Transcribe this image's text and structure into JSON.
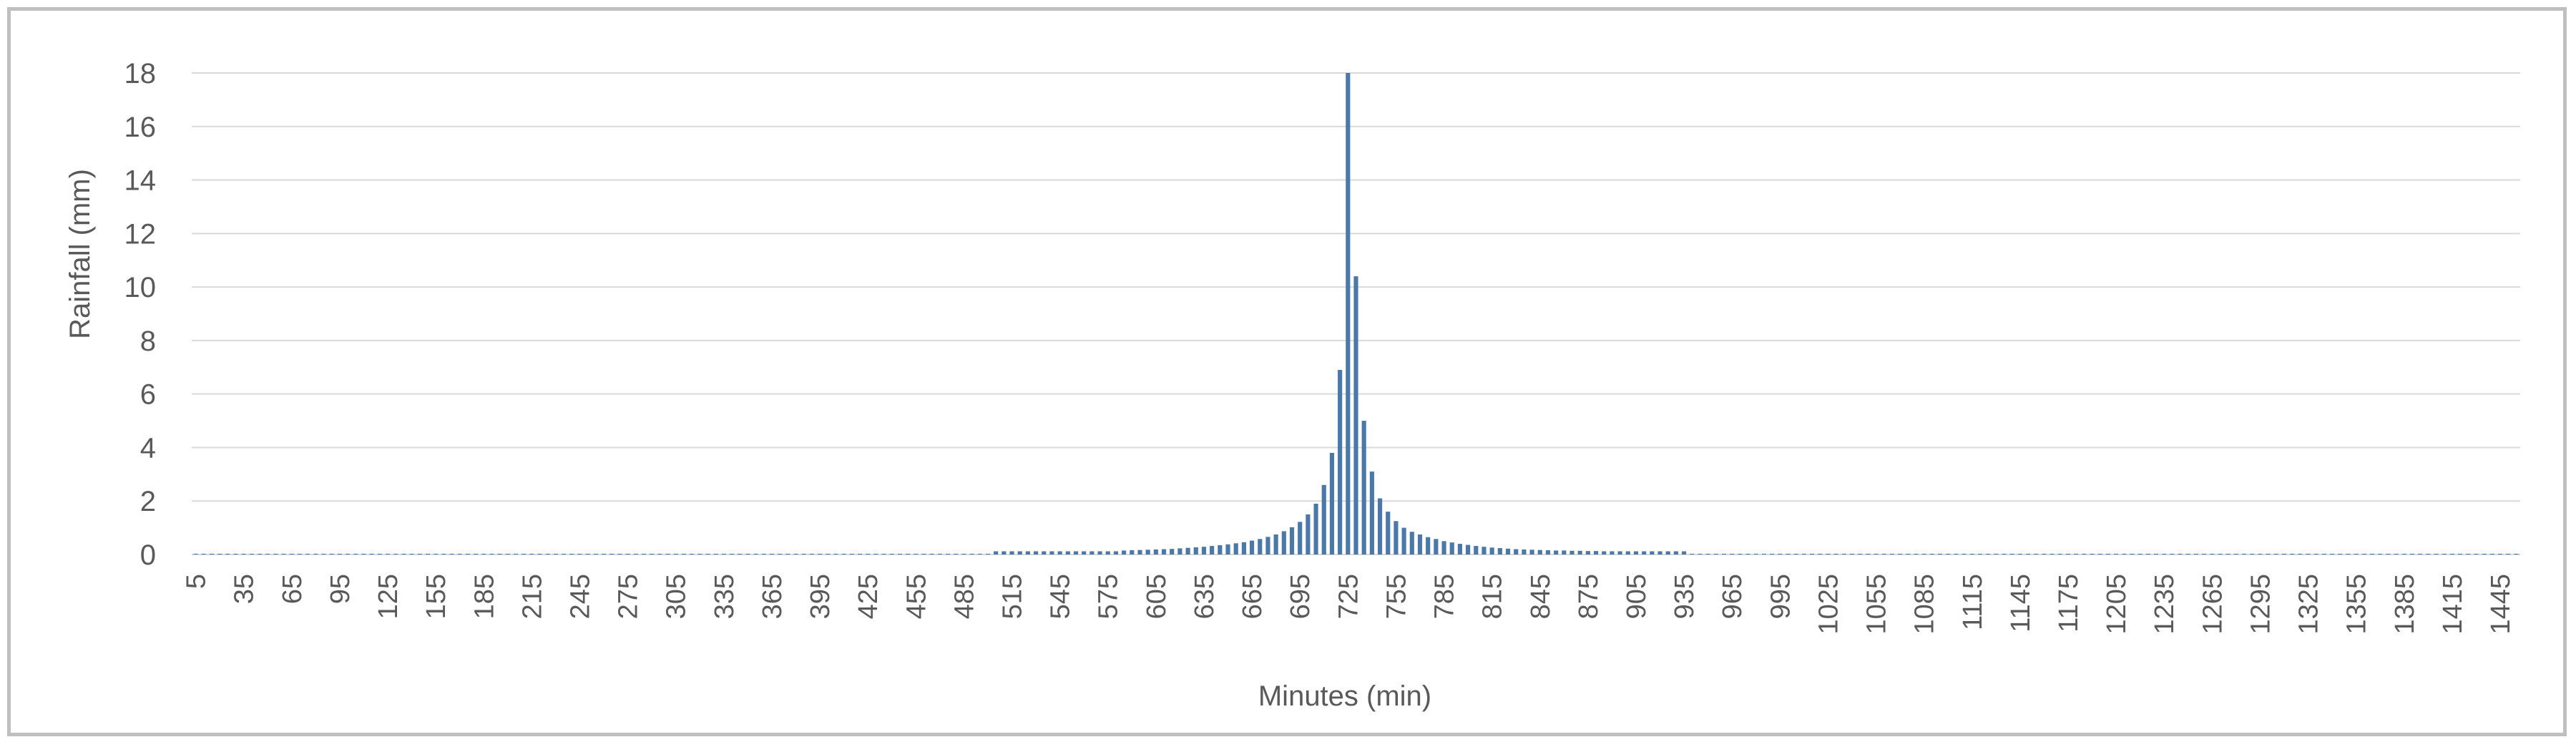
{
  "chart_data": {
    "type": "bar",
    "title": "",
    "xlabel": "Minutes (min)",
    "ylabel": "Rainfall (mm)",
    "ylim": [
      0,
      18
    ],
    "yticks": [
      0,
      2,
      4,
      6,
      8,
      10,
      12,
      14,
      16,
      18
    ],
    "x_start": 5,
    "x_step": 5,
    "x_count": 288,
    "x_label_every": 6,
    "grid": true,
    "legend": "none",
    "bar_color": "#4a78a8",
    "gridline_color": "#d9d9d9",
    "values": [
      0.03,
      0.03,
      0.03,
      0.03,
      0.03,
      0.03,
      0.03,
      0.03,
      0.03,
      0.03,
      0.03,
      0.03,
      0.03,
      0.03,
      0.03,
      0.03,
      0.03,
      0.03,
      0.03,
      0.03,
      0.03,
      0.03,
      0.03,
      0.03,
      0.03,
      0.03,
      0.03,
      0.03,
      0.03,
      0.03,
      0.03,
      0.03,
      0.03,
      0.03,
      0.03,
      0.03,
      0.03,
      0.03,
      0.03,
      0.03,
      0.03,
      0.03,
      0.03,
      0.03,
      0.03,
      0.03,
      0.03,
      0.03,
      0.03,
      0.03,
      0.03,
      0.03,
      0.03,
      0.03,
      0.03,
      0.03,
      0.03,
      0.03,
      0.03,
      0.03,
      0.03,
      0.03,
      0.03,
      0.03,
      0.03,
      0.03,
      0.03,
      0.03,
      0.03,
      0.03,
      0.03,
      0.03,
      0.03,
      0.03,
      0.03,
      0.03,
      0.03,
      0.03,
      0.03,
      0.03,
      0.03,
      0.03,
      0.03,
      0.03,
      0.03,
      0.03,
      0.03,
      0.03,
      0.03,
      0.03,
      0.03,
      0.03,
      0.03,
      0.03,
      0.03,
      0.03,
      0.03,
      0.03,
      0.03,
      0.03,
      0.12,
      0.12,
      0.12,
      0.12,
      0.12,
      0.12,
      0.12,
      0.12,
      0.12,
      0.12,
      0.12,
      0.12,
      0.12,
      0.12,
      0.12,
      0.12,
      0.15,
      0.16,
      0.17,
      0.18,
      0.19,
      0.2,
      0.21,
      0.23,
      0.25,
      0.27,
      0.29,
      0.32,
      0.35,
      0.38,
      0.42,
      0.46,
      0.52,
      0.58,
      0.66,
      0.75,
      0.87,
      1.02,
      1.22,
      1.5,
      1.9,
      2.6,
      3.8,
      6.9,
      18.0,
      10.4,
      5.0,
      3.1,
      2.1,
      1.6,
      1.25,
      1.0,
      0.85,
      0.75,
      0.65,
      0.58,
      0.5,
      0.45,
      0.4,
      0.36,
      0.32,
      0.29,
      0.26,
      0.24,
      0.22,
      0.2,
      0.19,
      0.18,
      0.17,
      0.16,
      0.15,
      0.15,
      0.14,
      0.14,
      0.13,
      0.13,
      0.12,
      0.12,
      0.12,
      0.12,
      0.12,
      0.12,
      0.12,
      0.12,
      0.12,
      0.12,
      0.12,
      0.03,
      0.03,
      0.03,
      0.03,
      0.03,
      0.03,
      0.03,
      0.03,
      0.03,
      0.03,
      0.03,
      0.03,
      0.03,
      0.03,
      0.03,
      0.03,
      0.03,
      0.03,
      0.03,
      0.03,
      0.03,
      0.03,
      0.03,
      0.03,
      0.03,
      0.03,
      0.03,
      0.03,
      0.03,
      0.03,
      0.03,
      0.03,
      0.03,
      0.03,
      0.03,
      0.03,
      0.03,
      0.03,
      0.03,
      0.03,
      0.03,
      0.03,
      0.03,
      0.03,
      0.03,
      0.03,
      0.03,
      0.03,
      0.03,
      0.03,
      0.03,
      0.03,
      0.03,
      0.03,
      0.03,
      0.03,
      0.03,
      0.03,
      0.03,
      0.03,
      0.03,
      0.03,
      0.03,
      0.03,
      0.03,
      0.03,
      0.03,
      0.03,
      0.03,
      0.03,
      0.03,
      0.03,
      0.03,
      0.03,
      0.03,
      0.03,
      0.03,
      0.03,
      0.03,
      0.03,
      0.03,
      0.03,
      0.03,
      0.03,
      0.03,
      0.03,
      0.03,
      0.03,
      0.03,
      0.03,
      0.03,
      0.03,
      0.03,
      0.03,
      0.03,
      0.03,
      0.03,
      0.03,
      0.03,
      0.03,
      0.03,
      0.03,
      0.03,
      0.03
    ]
  }
}
